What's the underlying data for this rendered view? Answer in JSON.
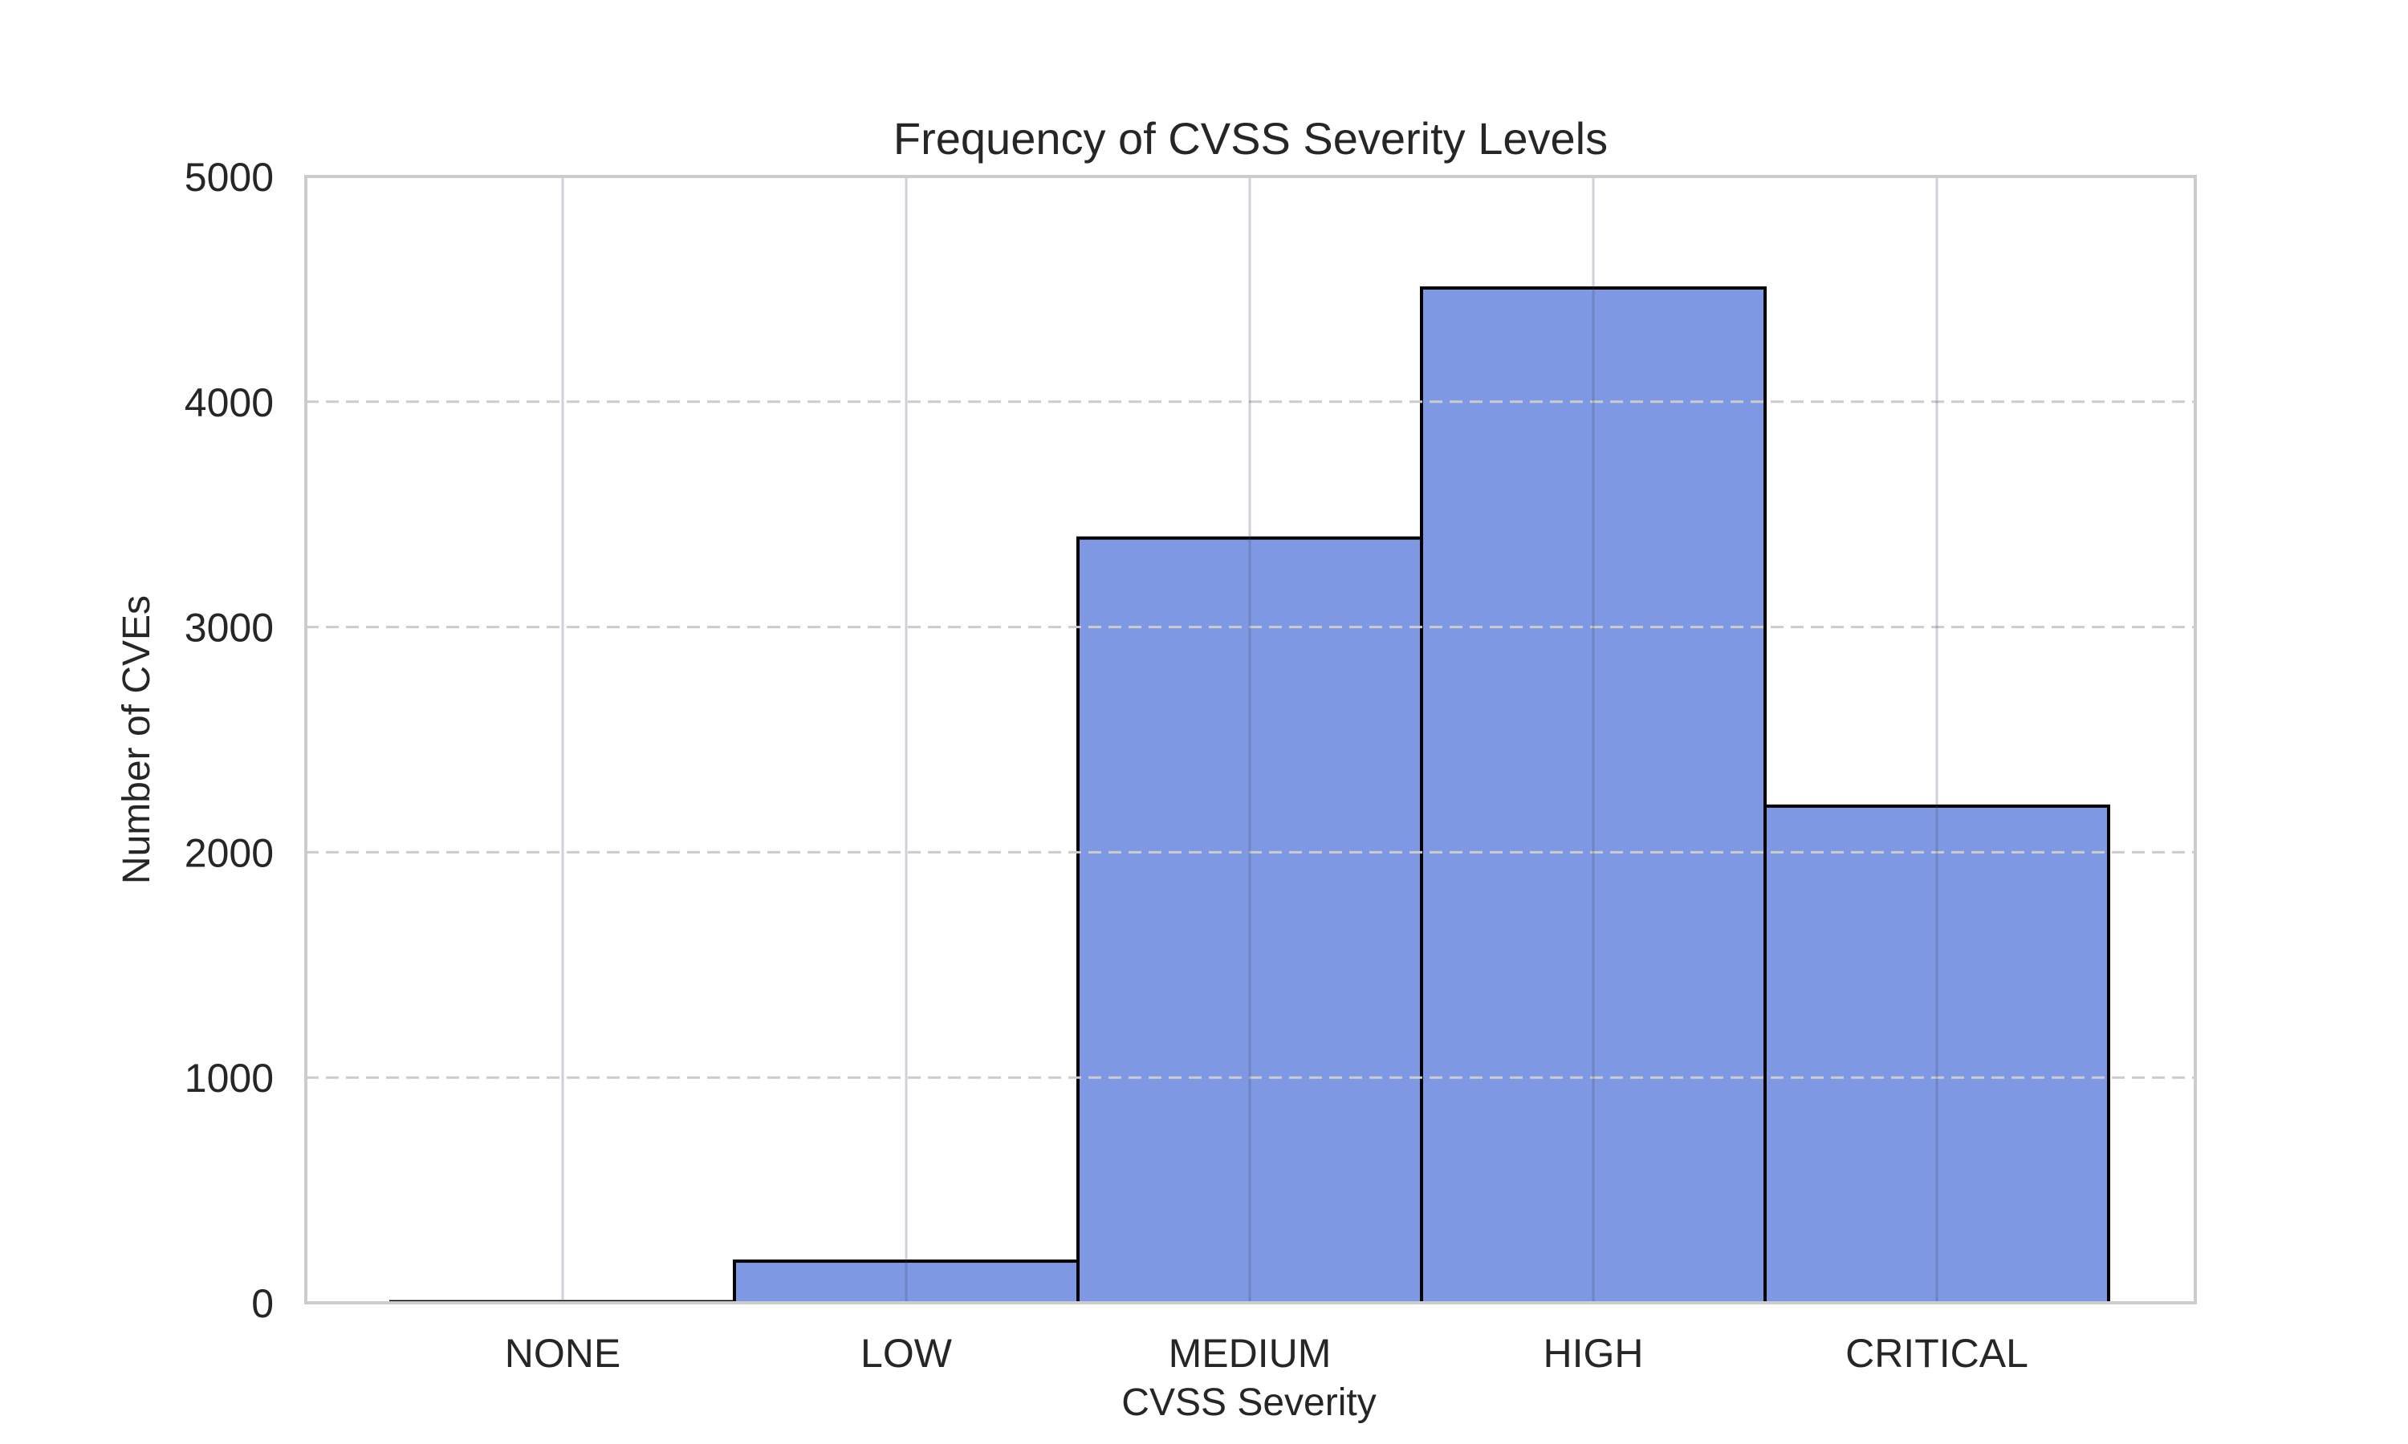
{
  "chart_data": {
    "type": "bar",
    "title": "Frequency of CVSS Severity Levels",
    "xlabel": "CVSS Severity",
    "ylabel": "Number of CVEs",
    "categories": [
      "NONE",
      "LOW",
      "MEDIUM",
      "HIGH",
      "CRITICAL"
    ],
    "values": [
      5,
      185,
      3395,
      4505,
      2205
    ],
    "ylim": [
      0,
      5000
    ],
    "yticks": [
      0,
      1000,
      2000,
      3000,
      4000,
      5000
    ],
    "grid": {
      "x": "solid",
      "y": "dashed"
    },
    "colors": {
      "bar_fill": "#7f98e3",
      "bar_edge": "#000000",
      "grid": "#cccccc",
      "axis": "#cccccc",
      "text": "#262626"
    }
  }
}
